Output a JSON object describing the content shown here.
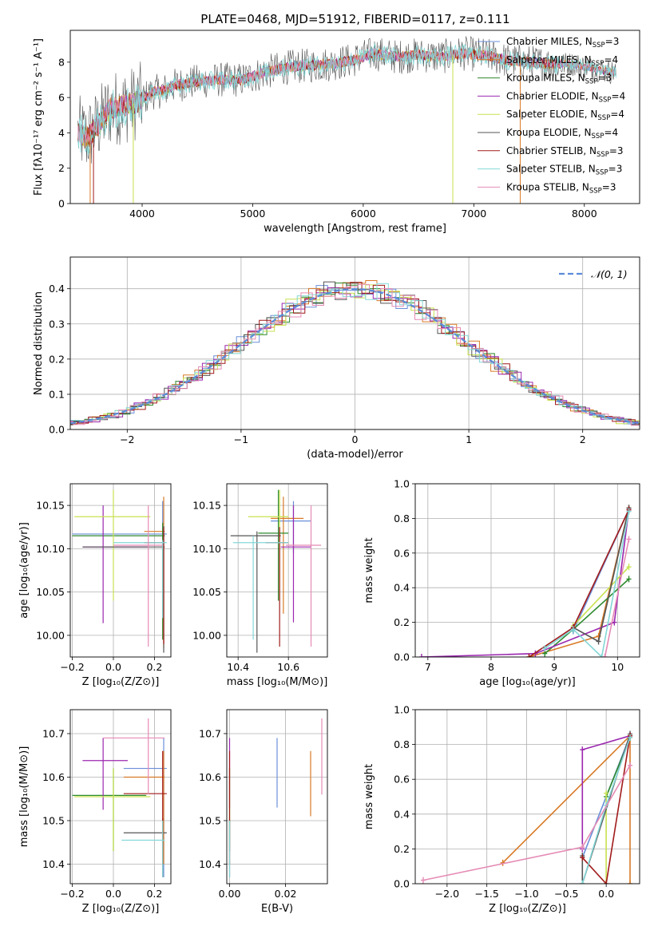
{
  "colors": {
    "grid": "#b0b0b0",
    "axis": "#000000",
    "series": [
      "#6a8fd8",
      "#d97a27",
      "#2e8a2e",
      "#9b27af",
      "#c7e24f",
      "#555555",
      "#a11a1a",
      "#84d7d7",
      "#e58bb5"
    ]
  },
  "chart_data": [
    {
      "panel": "spectrum",
      "type": "line",
      "title": "PLATE=0468, MJD=51912, FIBERID=0117, z=0.111",
      "xlabel": "wavelength [Angstrom, rest frame]",
      "ylabel": "Flux [fλ10⁻¹⁷ erg cm⁻² s⁻¹ A⁻¹]",
      "xlim": [
        3350,
        8500
      ],
      "ylim": [
        0,
        9.8
      ],
      "xticks": [
        "4000",
        "5000",
        "6000",
        "7000",
        "8000"
      ],
      "yticks": [
        "0",
        "2",
        "4",
        "6",
        "8"
      ],
      "grid": false,
      "legend_position": "upper-right",
      "legend": [
        {
          "label": "Chabrier MILES, N",
          "sub": "SSP",
          "suffix": "=3"
        },
        {
          "label": "Salpeter MILES, N",
          "sub": "SSP",
          "suffix": "=4"
        },
        {
          "label": "Kroupa MILES, N",
          "sub": "SSP",
          "suffix": "=3"
        },
        {
          "label": "Chabrier ELODIE, N",
          "sub": "SSP",
          "suffix": "=4"
        },
        {
          "label": "Salpeter ELODIE, N",
          "sub": "SSP",
          "suffix": "=4"
        },
        {
          "label": "Kroupa ELODIE, N",
          "sub": "SSP",
          "suffix": "=4"
        },
        {
          "label": "Chabrier STELIB, N",
          "sub": "SSP",
          "suffix": "=3"
        },
        {
          "label": "Salpeter STELIB, N",
          "sub": "SSP",
          "suffix": "=3"
        },
        {
          "label": "Kroupa STELIB, N",
          "sub": "SSP",
          "suffix": "=3"
        }
      ],
      "continuum_x": [
        3420,
        3500,
        3600,
        3700,
        3800,
        3900,
        4000,
        4100,
        4200,
        4300,
        4500,
        4700,
        4900,
        5100,
        5300,
        5500,
        5700,
        5900,
        6100,
        6300,
        6500,
        6700,
        6900,
        7100,
        7300,
        7500,
        7700,
        7900,
        8100,
        8290
      ],
      "continuum_y": [
        4.0,
        3.7,
        4.4,
        5.3,
        5.5,
        5.6,
        5.9,
        6.3,
        6.4,
        6.7,
        6.9,
        7.0,
        7.0,
        7.4,
        7.7,
        7.8,
        7.9,
        8.1,
        8.5,
        8.3,
        8.4,
        8.3,
        8.5,
        8.4,
        8.1,
        8.0,
        7.9,
        7.9,
        7.6,
        7.4
      ]
    },
    {
      "panel": "residuals",
      "type": "step",
      "xlabel": "(data-model)/error",
      "ylabel": "Normed distribution",
      "xlim": [
        -2.5,
        2.5
      ],
      "ylim": [
        0,
        0.49
      ],
      "xticks": [
        "−2",
        "−1",
        "0",
        "1",
        "2"
      ],
      "yticks": [
        "0.0",
        "0.1",
        "0.2",
        "0.3",
        "0.4"
      ],
      "grid": true,
      "legend_position": "upper-right",
      "reference_label": "𝒩(0, 1)",
      "reference_color": "#5b8bd8"
    },
    {
      "panel": "age-vs-Z",
      "type": "errorbar",
      "xlabel": "Z [log₁₀(Z/Z⊙)]",
      "ylabel": "age  [log₁₀(age/yr)]",
      "xlim": [
        -0.21,
        0.28
      ],
      "ylim": [
        9.975,
        10.175
      ],
      "xticks": [
        "−0.2",
        "0.0",
        "0.2"
      ],
      "yticks": [
        "10.00",
        "10.05",
        "10.10",
        "10.15"
      ],
      "points": [
        {
          "x": 0.24,
          "y": 10.117,
          "xlo": -0.2,
          "xhi": 0.26,
          "ylo": 10.025,
          "yhi": 10.155,
          "c": 0
        },
        {
          "x": 0.245,
          "y": 10.12,
          "xlo": 0.15,
          "xhi": 0.25,
          "ylo": 9.985,
          "yhi": 10.16,
          "c": 1
        },
        {
          "x": 0.24,
          "y": 10.115,
          "xlo": -0.2,
          "xhi": 0.25,
          "ylo": 9.995,
          "yhi": 10.13,
          "c": 2
        },
        {
          "x": -0.05,
          "y": 10.102,
          "xlo": -0.15,
          "xhi": 0.17,
          "ylo": 10.014,
          "yhi": 10.15,
          "c": 3
        },
        {
          "x": 0.0,
          "y": 10.137,
          "xlo": -0.19,
          "xhi": 0.18,
          "ylo": 10.04,
          "yhi": 10.168,
          "c": 4
        },
        {
          "x": 0.245,
          "y": 10.102,
          "xlo": -0.15,
          "xhi": 0.25,
          "ylo": 9.98,
          "yhi": 10.126,
          "c": 5
        },
        {
          "x": 0.245,
          "y": 10.107,
          "xlo": 0.15,
          "xhi": 0.25,
          "ylo": 9.99,
          "yhi": 10.125,
          "c": 6
        },
        {
          "x": 0.24,
          "y": 10.107,
          "xlo": 0.0,
          "xhi": 0.26,
          "ylo": 10.02,
          "yhi": 10.11,
          "c": 7
        },
        {
          "x": 0.17,
          "y": 10.104,
          "xlo": 0.0,
          "xhi": 0.24,
          "ylo": 9.987,
          "yhi": 10.15,
          "c": 8
        }
      ]
    },
    {
      "panel": "age-vs-mass",
      "type": "errorbar",
      "xlabel": "mass [log₁₀(M/M⊙)]",
      "ylabel": "",
      "xlim": [
        10.355,
        10.755
      ],
      "ylim": [
        9.975,
        10.175
      ],
      "xticks": [
        "10.4",
        "10.6"
      ],
      "yticks": [
        "10.00",
        "10.05",
        "10.10",
        "10.15"
      ],
      "points": [
        {
          "x": 10.62,
          "y": 10.132,
          "xlo": 10.53,
          "xhi": 10.69,
          "ylo": 10.095,
          "yhi": 10.155,
          "c": 0
        },
        {
          "x": 10.58,
          "y": 10.135,
          "xlo": 10.53,
          "xhi": 10.66,
          "ylo": 10.025,
          "yhi": 10.16,
          "c": 1
        },
        {
          "x": 10.56,
          "y": 10.118,
          "xlo": 10.48,
          "xhi": 10.6,
          "ylo": 10.04,
          "yhi": 10.168,
          "c": 2
        },
        {
          "x": 10.62,
          "y": 10.102,
          "xlo": 10.57,
          "xhi": 10.69,
          "ylo": 10.015,
          "yhi": 10.15,
          "c": 3
        },
        {
          "x": 10.565,
          "y": 10.137,
          "xlo": 10.44,
          "xhi": 10.6,
          "ylo": 10.04,
          "yhi": 10.168,
          "c": 4
        },
        {
          "x": 10.475,
          "y": 10.115,
          "xlo": 10.37,
          "xhi": 10.57,
          "ylo": 9.98,
          "yhi": 10.12,
          "c": 5
        },
        {
          "x": 10.565,
          "y": 10.107,
          "xlo": 10.51,
          "xhi": 10.6,
          "ylo": 9.987,
          "yhi": 10.125,
          "c": 6
        },
        {
          "x": 10.46,
          "y": 10.107,
          "xlo": 10.38,
          "xhi": 10.6,
          "ylo": 9.995,
          "yhi": 10.115,
          "c": 7
        },
        {
          "x": 10.69,
          "y": 10.104,
          "xlo": 10.59,
          "xhi": 10.73,
          "ylo": 9.987,
          "yhi": 10.15,
          "c": 8
        }
      ]
    },
    {
      "panel": "massweight-vs-age",
      "type": "line",
      "xlabel": "age  [log₁₀(age/yr)]",
      "ylabel": "mass weight",
      "xlim": [
        6.8,
        10.35
      ],
      "ylim": [
        0,
        1.0
      ],
      "xticks": [
        "7",
        "8",
        "9",
        "10"
      ],
      "yticks": [
        "0.0",
        "0.2",
        "0.4",
        "0.6",
        "0.8",
        "1.0"
      ],
      "grid": true,
      "series": [
        {
          "x": [
            9.3,
            10.18
          ],
          "y": [
            0.15,
            0.85
          ],
          "c": 0
        },
        {
          "x": [
            8.6,
            9.7,
            10.18
          ],
          "y": [
            0.0,
            0.12,
            0.86
          ],
          "c": 1
        },
        {
          "x": [
            8.85,
            9.3,
            10.18
          ],
          "y": [
            0.02,
            0.16,
            0.45
          ],
          "c": 2
        },
        {
          "x": [
            6.9,
            8.7,
            9.95,
            10.18
          ],
          "y": [
            0.0,
            0.02,
            0.2,
            0.85
          ],
          "c": 3
        },
        {
          "x": [
            9.3,
            10.18
          ],
          "y": [
            0.18,
            0.52
          ],
          "c": 4
        },
        {
          "x": [
            9.3,
            9.7,
            10.18
          ],
          "y": [
            0.17,
            0.09,
            0.86
          ],
          "c": 5
        },
        {
          "x": [
            8.6,
            9.3,
            10.18
          ],
          "y": [
            0.0,
            0.17,
            0.85
          ],
          "c": 6
        },
        {
          "x": [
            8.85,
            9.3,
            9.75,
            10.18
          ],
          "y": [
            0.05,
            0.16,
            0.0,
            0.84
          ],
          "c": 7
        },
        {
          "x": [
            9.8,
            10.18
          ],
          "y": [
            0.0,
            0.68
          ],
          "c": 8
        }
      ]
    },
    {
      "panel": "mass-vs-Z",
      "type": "errorbar",
      "xlabel": "Z [log₁₀(Z/Z⊙)]",
      "ylabel": "mass [log₁₀(M/M⊙)]",
      "xlim": [
        -0.21,
        0.28
      ],
      "ylim": [
        10.355,
        10.755
      ],
      "xticks": [
        "−0.2",
        "0.0",
        "0.2"
      ],
      "yticks": [
        "10.4",
        "10.5",
        "10.6",
        "10.7"
      ],
      "points": [
        {
          "x": 0.245,
          "y": 10.62,
          "xlo": 0.05,
          "xhi": 0.26,
          "ylo": 10.37,
          "yhi": 10.69,
          "c": 0
        },
        {
          "x": 0.245,
          "y": 10.6,
          "xlo": 0.05,
          "xhi": 0.25,
          "ylo": 10.4,
          "yhi": 10.66,
          "c": 1
        },
        {
          "x": 0.0,
          "y": 10.558,
          "xlo": -0.2,
          "xhi": 0.16,
          "ylo": 10.43,
          "yhi": 10.62,
          "c": 2
        },
        {
          "x": -0.05,
          "y": 10.638,
          "xlo": -0.15,
          "xhi": 0.07,
          "ylo": 10.525,
          "yhi": 10.69,
          "c": 3
        },
        {
          "x": 0.0,
          "y": 10.555,
          "xlo": -0.19,
          "xhi": 0.18,
          "ylo": 10.43,
          "yhi": 10.62,
          "c": 4
        },
        {
          "x": 0.24,
          "y": 10.472,
          "xlo": 0.05,
          "xhi": 0.26,
          "ylo": 10.37,
          "yhi": 10.505,
          "c": 5
        },
        {
          "x": 0.24,
          "y": 10.562,
          "xlo": 0.05,
          "xhi": 0.26,
          "ylo": 10.4,
          "yhi": 10.66,
          "c": 6
        },
        {
          "x": 0.24,
          "y": 10.455,
          "xlo": 0.04,
          "xhi": 0.25,
          "ylo": 10.37,
          "yhi": 10.5,
          "c": 7
        },
        {
          "x": 0.17,
          "y": 10.69,
          "xlo": -0.05,
          "xhi": 0.25,
          "ylo": 10.56,
          "yhi": 10.735,
          "c": 8
        }
      ]
    },
    {
      "panel": "mass-vs-EBV",
      "type": "errorbar",
      "xlabel": "E(B-V)",
      "ylabel": "",
      "xlim": [
        -0.001,
        0.035
      ],
      "ylim": [
        10.355,
        10.755
      ],
      "xticks": [
        "0.00",
        "0.02"
      ],
      "yticks": [
        "10.4",
        "10.5",
        "10.6",
        "10.7"
      ],
      "points": [
        {
          "x": 0.017,
          "y": 10.6,
          "ylo": 10.53,
          "yhi": 10.69,
          "c": 0
        },
        {
          "x": 0.029,
          "y": 10.58,
          "ylo": 10.51,
          "yhi": 10.66,
          "c": 1
        },
        {
          "x": 0.0,
          "y": 10.55,
          "ylo": 10.43,
          "yhi": 10.62,
          "c": 2
        },
        {
          "x": 0.0,
          "y": 10.62,
          "ylo": 10.53,
          "yhi": 10.69,
          "c": 3
        },
        {
          "x": 0.0,
          "y": 10.6,
          "ylo": 10.45,
          "yhi": 10.62,
          "c": 4
        },
        {
          "x": 0.0,
          "y": 10.45,
          "ylo": 10.37,
          "yhi": 10.5,
          "c": 5
        },
        {
          "x": 0.0,
          "y": 10.55,
          "ylo": 10.4,
          "yhi": 10.66,
          "c": 6
        },
        {
          "x": 0.0,
          "y": 10.45,
          "ylo": 10.37,
          "yhi": 10.5,
          "c": 7
        },
        {
          "x": 0.033,
          "y": 10.64,
          "ylo": 10.56,
          "yhi": 10.735,
          "c": 8
        }
      ]
    },
    {
      "panel": "massweight-vs-Z",
      "type": "line",
      "xlabel": "Z [log₁₀(Z/Z⊙)]",
      "ylabel": "mass weight",
      "xlim": [
        -2.4,
        0.42
      ],
      "ylim": [
        0,
        1.0
      ],
      "xticks": [
        "−2.0",
        "−1.5",
        "−1.0",
        "−0.5",
        "0.0"
      ],
      "yticks": [
        "0.0",
        "0.2",
        "0.4",
        "0.6",
        "0.8",
        "1.0"
      ],
      "grid": true,
      "series": [
        {
          "x": [
            -0.3,
            0.3
          ],
          "y": [
            0.15,
            0.85
          ],
          "c": 0
        },
        {
          "x": [
            -1.3,
            0.3,
            0.3
          ],
          "y": [
            0.12,
            0.85,
            0.0
          ],
          "c": 1
        },
        {
          "x": [
            0.0,
            0.3
          ],
          "y": [
            0.5,
            0.84
          ],
          "c": 2
        },
        {
          "x": [
            -0.3,
            -0.3,
            0.3
          ],
          "y": [
            0.2,
            0.77,
            0.85
          ],
          "c": 3
        },
        {
          "x": [
            0.0,
            0.0
          ],
          "y": [
            0.52,
            0.0
          ],
          "c": 4
        },
        {
          "x": [
            -0.3,
            -0.3,
            0.3
          ],
          "y": [
            0.16,
            0.0,
            0.86
          ],
          "c": 5
        },
        {
          "x": [
            -0.3,
            0.0,
            0.3
          ],
          "y": [
            0.15,
            0.0,
            0.85
          ],
          "c": 6
        },
        {
          "x": [
            -0.3,
            0.0,
            0.3
          ],
          "y": [
            0.0,
            0.45,
            0.84
          ],
          "c": 7
        },
        {
          "x": [
            -2.3,
            -0.3,
            0.3
          ],
          "y": [
            0.02,
            0.21,
            0.68
          ],
          "c": 8
        }
      ]
    }
  ]
}
